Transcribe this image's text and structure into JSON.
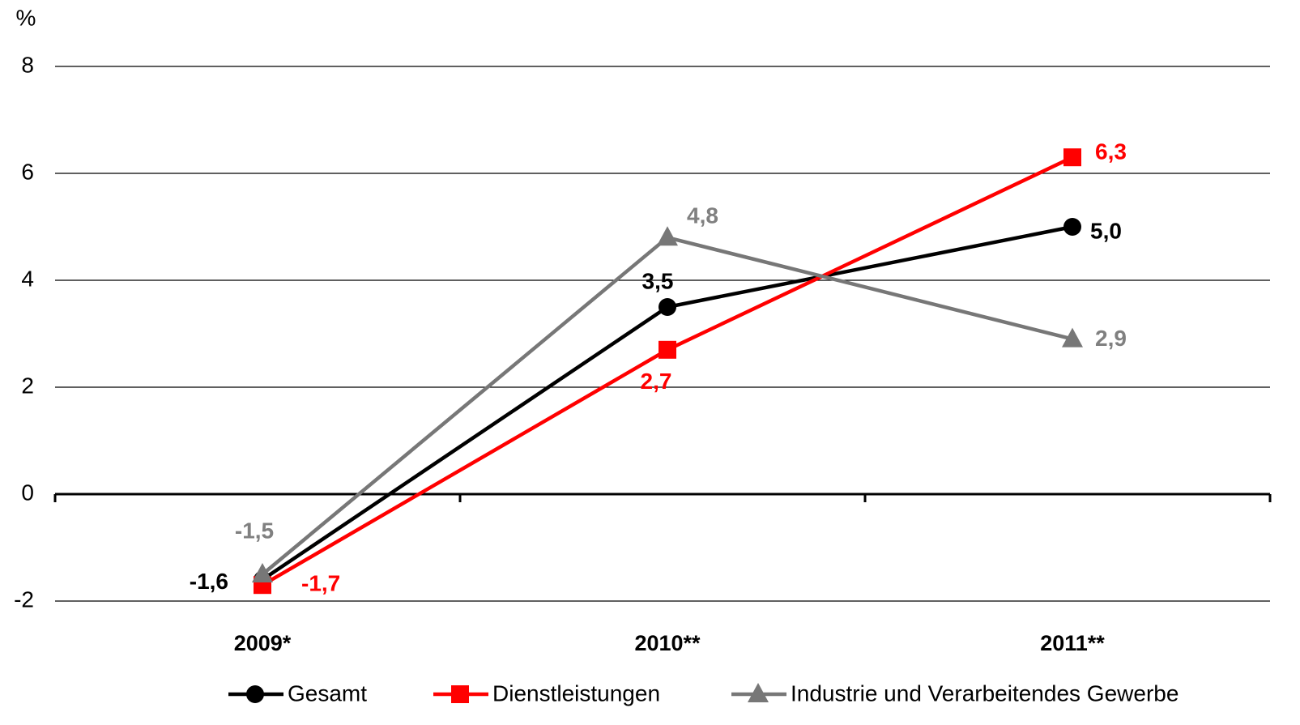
{
  "chart_data": {
    "type": "line",
    "y_label": "%",
    "categories": [
      "2009*",
      "2010**",
      "2011**"
    ],
    "series": [
      {
        "name": "Gesamt",
        "color": "#000000",
        "marker": "circle",
        "values": [
          -1.6,
          3.5,
          5.0
        ],
        "value_labels": [
          "-1,6",
          "3,5",
          "5,0"
        ]
      },
      {
        "name": "Dienstleistungen",
        "color": "#ff0000",
        "marker": "square",
        "values": [
          -1.7,
          2.7,
          6.3
        ],
        "value_labels": [
          "-1,7",
          "2,7",
          "6,3"
        ]
      },
      {
        "name": "Industrie und Verarbeitendes Gewerbe",
        "color": "#777777",
        "marker": "triangle",
        "values": [
          -1.5,
          4.8,
          2.9
        ],
        "value_labels": [
          "-1,5",
          "4,8",
          "2,9"
        ]
      }
    ],
    "ylim": [
      -2,
      8
    ],
    "yticks": [
      -2,
      0,
      2,
      4,
      6,
      8
    ],
    "grid": true,
    "legend": "bottom"
  }
}
